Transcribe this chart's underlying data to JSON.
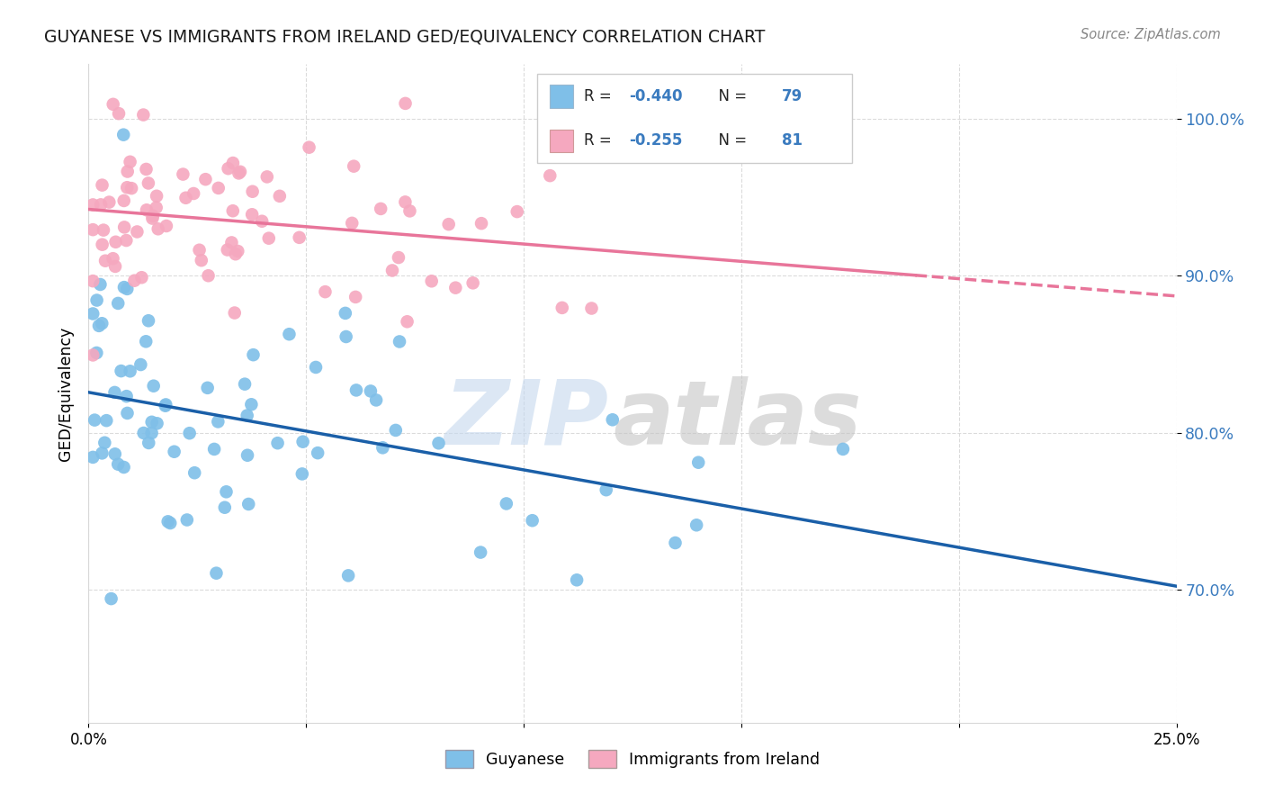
{
  "title": "GUYANESE VS IMMIGRANTS FROM IRELAND GED/EQUIVALENCY CORRELATION CHART",
  "source": "Source: ZipAtlas.com",
  "ylabel": "GED/Equivalency",
  "xlim": [
    0.0,
    0.25
  ],
  "ylim": [
    0.615,
    1.035
  ],
  "ytick_vals": [
    0.7,
    0.8,
    0.9,
    1.0
  ],
  "ytick_labels": [
    "70.0%",
    "80.0%",
    "90.0%",
    "100.0%"
  ],
  "xtick_vals": [
    0.0,
    0.05,
    0.1,
    0.15,
    0.2,
    0.25
  ],
  "xtick_labels": [
    "0.0%",
    "",
    "",
    "",
    "",
    "25.0%"
  ],
  "legend_r_blue": "-0.440",
  "legend_n_blue": "79",
  "legend_r_pink": "-0.255",
  "legend_n_pink": "81",
  "legend_label_blue": "Guyanese",
  "legend_label_pink": "Immigrants from Ireland",
  "blue_scatter_color": "#7fbfe8",
  "pink_scatter_color": "#f5a8bf",
  "blue_line_color": "#1a5fa8",
  "pink_line_color": "#e8759a",
  "accent_color": "#3a7bbf",
  "background_color": "#ffffff",
  "grid_color": "#d8d8d8",
  "watermark_zip_color": "#c5d8ee",
  "watermark_atlas_color": "#c5c5c5"
}
